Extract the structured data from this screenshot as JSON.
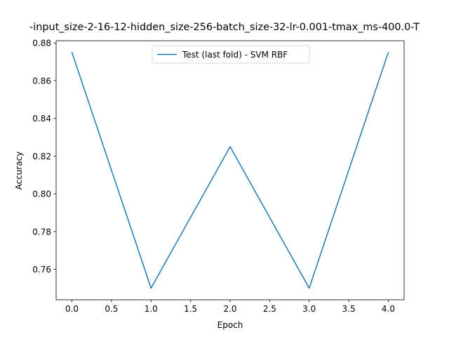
{
  "chart_data": {
    "type": "line",
    "title": "-input_size-2-16-12-hidden_size-256-batch_size-32-lr-0.001-tmax_ms-400.0-T",
    "xlabel": "Epoch",
    "ylabel": "Accuracy",
    "xlim": [
      -0.2,
      4.2
    ],
    "ylim": [
      0.7438,
      0.8812
    ],
    "x_ticks": [
      0.0,
      0.5,
      1.0,
      1.5,
      2.0,
      2.5,
      3.0,
      3.5,
      4.0
    ],
    "x_tick_labels": [
      "0.0",
      "0.5",
      "1.0",
      "1.5",
      "2.0",
      "2.5",
      "3.0",
      "3.5",
      "4.0"
    ],
    "y_ticks": [
      0.76,
      0.78,
      0.8,
      0.82,
      0.84,
      0.86,
      0.88
    ],
    "y_tick_labels": [
      "0.76",
      "0.78",
      "0.80",
      "0.82",
      "0.84",
      "0.86",
      "0.88"
    ],
    "grid": false,
    "legend_position": "top-center",
    "series": [
      {
        "name": "Test (last fold) - SVM RBF",
        "color": "#1f77b4",
        "x": [
          0,
          1,
          2,
          3,
          4
        ],
        "y": [
          0.875,
          0.75,
          0.825,
          0.75,
          0.875
        ]
      }
    ]
  }
}
